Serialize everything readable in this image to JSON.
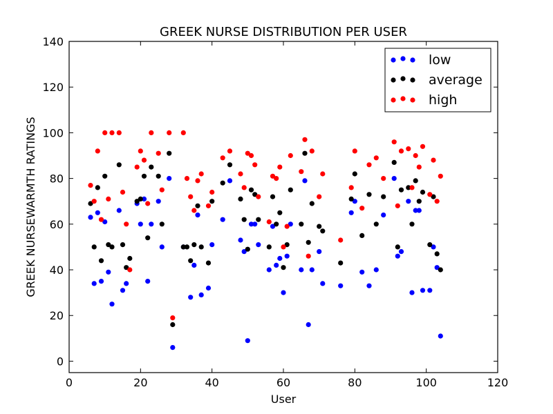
{
  "chart_data": {
    "type": "scatter",
    "title": "GREEK NURSE DISTRIBUTION PER USER",
    "xlabel": "User",
    "ylabel": "GREEK NURSEWARMTH RATINGS",
    "xlim": [
      0,
      120
    ],
    "ylim": [
      -5,
      140
    ],
    "xticks": [
      0,
      20,
      40,
      60,
      80,
      100,
      120
    ],
    "yticks": [
      0,
      20,
      40,
      60,
      80,
      100,
      120,
      140
    ],
    "grid": false,
    "legend_position": "top-right",
    "series": [
      {
        "name": "low",
        "color": "#0000ff",
        "points": [
          [
            6,
            63
          ],
          [
            7,
            34
          ],
          [
            8,
            65
          ],
          [
            9,
            35
          ],
          [
            10,
            61
          ],
          [
            11,
            39
          ],
          [
            12,
            25
          ],
          [
            14,
            66
          ],
          [
            15,
            31
          ],
          [
            16,
            34
          ],
          [
            19,
            69
          ],
          [
            20,
            60
          ],
          [
            21,
            71
          ],
          [
            22,
            35
          ],
          [
            23,
            60
          ],
          [
            25,
            70
          ],
          [
            26,
            50
          ],
          [
            28,
            80
          ],
          [
            29,
            6
          ],
          [
            32,
            50
          ],
          [
            34,
            28
          ],
          [
            35,
            42
          ],
          [
            36,
            64
          ],
          [
            37,
            29
          ],
          [
            39,
            32
          ],
          [
            40,
            51
          ],
          [
            43,
            62
          ],
          [
            45,
            79
          ],
          [
            48,
            53
          ],
          [
            49,
            48
          ],
          [
            50,
            9
          ],
          [
            51,
            60
          ],
          [
            52,
            60
          ],
          [
            53,
            51
          ],
          [
            56,
            40
          ],
          [
            57,
            59
          ],
          [
            58,
            42
          ],
          [
            59,
            45
          ],
          [
            60,
            30
          ],
          [
            61,
            46
          ],
          [
            62,
            60
          ],
          [
            65,
            40
          ],
          [
            66,
            79
          ],
          [
            67,
            16
          ],
          [
            68,
            40
          ],
          [
            70,
            48
          ],
          [
            71,
            34
          ],
          [
            76,
            33
          ],
          [
            79,
            65
          ],
          [
            80,
            70
          ],
          [
            82,
            39
          ],
          [
            84,
            33
          ],
          [
            86,
            40
          ],
          [
            88,
            64
          ],
          [
            91,
            80
          ],
          [
            92,
            46
          ],
          [
            93,
            48
          ],
          [
            95,
            70
          ],
          [
            96,
            30
          ],
          [
            97,
            66
          ],
          [
            98,
            66
          ],
          [
            99,
            31
          ],
          [
            101,
            31
          ],
          [
            102,
            50
          ],
          [
            103,
            41
          ],
          [
            104,
            11
          ]
        ]
      },
      {
        "name": "average",
        "color": "#000000",
        "points": [
          [
            6,
            69
          ],
          [
            7,
            50
          ],
          [
            8,
            76
          ],
          [
            9,
            44
          ],
          [
            10,
            81
          ],
          [
            11,
            51
          ],
          [
            12,
            50
          ],
          [
            14,
            86
          ],
          [
            15,
            51
          ],
          [
            16,
            41
          ],
          [
            17,
            45
          ],
          [
            19,
            70
          ],
          [
            20,
            71
          ],
          [
            21,
            81
          ],
          [
            22,
            54
          ],
          [
            23,
            85
          ],
          [
            25,
            81
          ],
          [
            26,
            60
          ],
          [
            28,
            91
          ],
          [
            29,
            16
          ],
          [
            32,
            50
          ],
          [
            33,
            50
          ],
          [
            34,
            44
          ],
          [
            35,
            51
          ],
          [
            36,
            68
          ],
          [
            37,
            50
          ],
          [
            39,
            43
          ],
          [
            40,
            70
          ],
          [
            43,
            78
          ],
          [
            45,
            86
          ],
          [
            48,
            71
          ],
          [
            49,
            62
          ],
          [
            50,
            49
          ],
          [
            51,
            75
          ],
          [
            52,
            73
          ],
          [
            53,
            62
          ],
          [
            56,
            50
          ],
          [
            57,
            72
          ],
          [
            58,
            60
          ],
          [
            59,
            65
          ],
          [
            60,
            41
          ],
          [
            61,
            51
          ],
          [
            62,
            75
          ],
          [
            65,
            60
          ],
          [
            66,
            91
          ],
          [
            67,
            52
          ],
          [
            68,
            69
          ],
          [
            70,
            59
          ],
          [
            71,
            57
          ],
          [
            76,
            43
          ],
          [
            79,
            71
          ],
          [
            80,
            82
          ],
          [
            82,
            55
          ],
          [
            84,
            73
          ],
          [
            86,
            60
          ],
          [
            88,
            72
          ],
          [
            91,
            87
          ],
          [
            92,
            50
          ],
          [
            93,
            75
          ],
          [
            95,
            76
          ],
          [
            96,
            60
          ],
          [
            97,
            79
          ],
          [
            98,
            70
          ],
          [
            99,
            74
          ],
          [
            101,
            51
          ],
          [
            102,
            72
          ],
          [
            103,
            47
          ],
          [
            104,
            40
          ]
        ]
      },
      {
        "name": "high",
        "color": "#ff0000",
        "points": [
          [
            6,
            77
          ],
          [
            7,
            70
          ],
          [
            8,
            92
          ],
          [
            9,
            62
          ],
          [
            10,
            100
          ],
          [
            11,
            71
          ],
          [
            12,
            100
          ],
          [
            14,
            100
          ],
          [
            15,
            74
          ],
          [
            16,
            60
          ],
          [
            17,
            40
          ],
          [
            19,
            85
          ],
          [
            20,
            92
          ],
          [
            21,
            88
          ],
          [
            22,
            69
          ],
          [
            23,
            100
          ],
          [
            25,
            91
          ],
          [
            26,
            75
          ],
          [
            28,
            100
          ],
          [
            29,
            19
          ],
          [
            32,
            100
          ],
          [
            33,
            80
          ],
          [
            34,
            72
          ],
          [
            35,
            66
          ],
          [
            36,
            79
          ],
          [
            37,
            82
          ],
          [
            39,
            68
          ],
          [
            40,
            74
          ],
          [
            43,
            89
          ],
          [
            45,
            92
          ],
          [
            48,
            82
          ],
          [
            49,
            76
          ],
          [
            50,
            91
          ],
          [
            51,
            90
          ],
          [
            52,
            86
          ],
          [
            53,
            72
          ],
          [
            56,
            61
          ],
          [
            57,
            81
          ],
          [
            58,
            80
          ],
          [
            59,
            85
          ],
          [
            60,
            50
          ],
          [
            61,
            59
          ],
          [
            62,
            90
          ],
          [
            65,
            83
          ],
          [
            66,
            97
          ],
          [
            67,
            46
          ],
          [
            68,
            92
          ],
          [
            70,
            72
          ],
          [
            71,
            82
          ],
          [
            76,
            53
          ],
          [
            79,
            76
          ],
          [
            80,
            92
          ],
          [
            82,
            67
          ],
          [
            84,
            86
          ],
          [
            86,
            89
          ],
          [
            88,
            80
          ],
          [
            91,
            96
          ],
          [
            92,
            68
          ],
          [
            93,
            92
          ],
          [
            95,
            93
          ],
          [
            96,
            76
          ],
          [
            97,
            90
          ],
          [
            98,
            85
          ],
          [
            99,
            94
          ],
          [
            101,
            73
          ],
          [
            102,
            88
          ],
          [
            103,
            70
          ],
          [
            104,
            81
          ]
        ]
      }
    ]
  }
}
